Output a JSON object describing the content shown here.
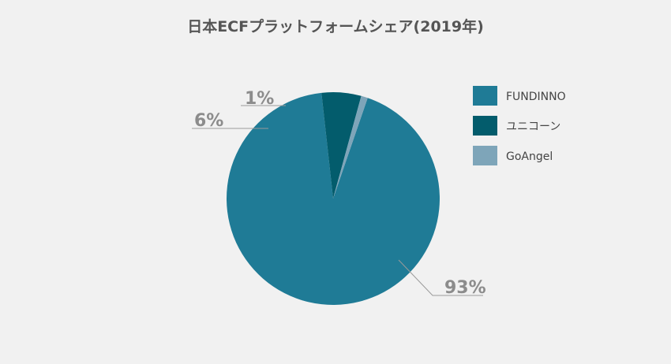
{
  "chart_data": {
    "type": "pie",
    "title": "日本ECFプラットフォームシェア(2019年)",
    "unit": "%",
    "slices": [
      {
        "name": "FUNDINNO",
        "value": 93,
        "label": "93%",
        "color": "#1f7b96"
      },
      {
        "name": "ユニコーン",
        "value": 6,
        "label": "6%",
        "color": "#035c6c"
      },
      {
        "name": "GoAngel",
        "value": 1,
        "label": "1%",
        "color": "#7ea5b9"
      }
    ],
    "legend": {
      "position": "right",
      "entries": [
        "FUNDINNO",
        "ユニコーン",
        "GoAngel"
      ]
    }
  }
}
